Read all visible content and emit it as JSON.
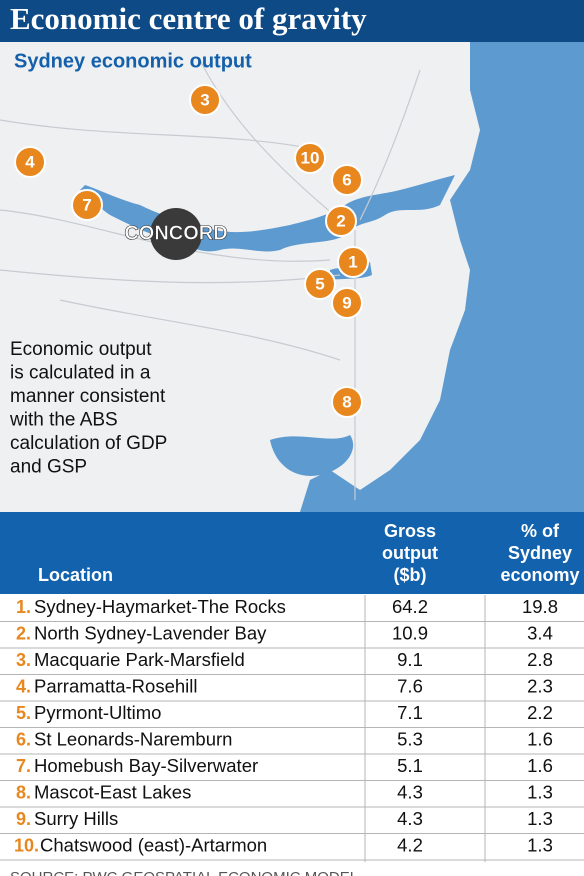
{
  "header": {
    "title": "Economic centre of gravity",
    "subtitle": "Sydney economic output"
  },
  "map": {
    "markers": [
      {
        "label": "1"
      },
      {
        "label": "2"
      },
      {
        "label": "3"
      },
      {
        "label": "4"
      },
      {
        "label": "5"
      },
      {
        "label": "6"
      },
      {
        "label": "7"
      },
      {
        "label": "8"
      },
      {
        "label": "9"
      },
      {
        "label": "10"
      }
    ],
    "centre": "CONCORD",
    "note": [
      "Economic output",
      "is calculated in a",
      "manner consistent",
      "with the ABS",
      "calculation of GDP",
      "and GSP"
    ]
  },
  "table": {
    "columns": [
      [
        "Location"
      ],
      [
        "Gross",
        "output",
        "($b)"
      ],
      [
        "% of",
        "Sydney",
        "economy"
      ]
    ],
    "rows": [
      [
        "1.",
        "Sydney-Haymarket-The Rocks",
        "64.2",
        "19.8"
      ],
      [
        "2.",
        "North Sydney-Lavender Bay",
        "10.9",
        "3.4"
      ],
      [
        "3.",
        "Macquarie Park-Marsfield",
        "9.1",
        "2.8"
      ],
      [
        "4.",
        "Parramatta-Rosehill",
        "7.6",
        "2.3"
      ],
      [
        "5.",
        "Pyrmont-Ultimo",
        "7.1",
        "2.2"
      ],
      [
        "6.",
        "St Leonards-Naremburn",
        "5.3",
        "1.6"
      ],
      [
        "7.",
        "Homebush Bay-Silverwater",
        "5.1",
        "1.6"
      ],
      [
        "8.",
        "Mascot-East Lakes",
        "4.3",
        "1.3"
      ],
      [
        "9.",
        "Surry Hills",
        "4.3",
        "1.3"
      ],
      [
        "10.",
        "Chatswood (east)-Artarmon",
        "4.2",
        "1.3"
      ]
    ],
    "source": "SOURCE: PWC GEOSPATIAL ECONOMIC MODEL"
  }
}
